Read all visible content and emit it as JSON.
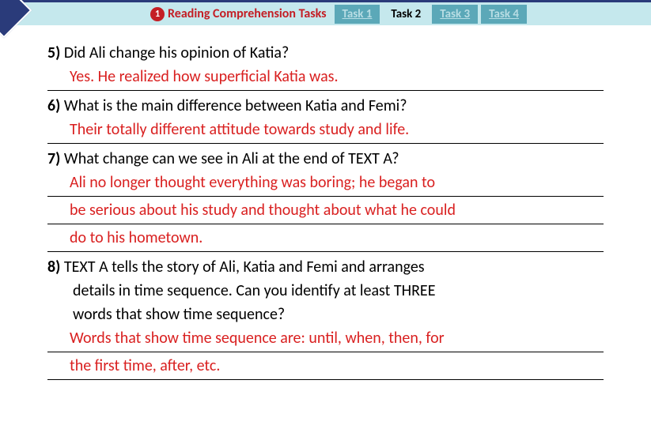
{
  "header": {
    "badge_num": "1",
    "title": "Reading Comprehension Tasks",
    "tabs": [
      {
        "label": "Task 1",
        "active": false
      },
      {
        "label": "Task 2",
        "active": true
      },
      {
        "label": "Task 3",
        "active": false
      },
      {
        "label": "Task 4",
        "active": false
      }
    ]
  },
  "questions": [
    {
      "num": "5)",
      "q": "Did Ali change his opinion of Katia?",
      "a_lines": [
        "Yes. He realized how superficial Katia was."
      ]
    },
    {
      "num": "6)",
      "q": "What is the main difference between Katia and Femi?",
      "a_lines": [
        "Their totally different attitude towards study and life."
      ]
    },
    {
      "num": "7)",
      "q": "What change can we see in Ali at the end of TEXT A?",
      "a_lines": [
        "Ali no longer thought everything was boring; he began to",
        "be serious about his study and thought about what he could",
        "do to his hometown."
      ]
    },
    {
      "num": "8)",
      "q": "TEXT A tells the story of Ali, Katia and Femi and arranges",
      "q_cont": [
        "details in time sequence. Can you identify at least THREE",
        "words that show time sequence?"
      ],
      "a_lines": [
        "Words that show time sequence are: until, when, then, for",
        "the first time, after, etc."
      ]
    }
  ],
  "colors": {
    "header_bg": "#c5e8ed",
    "header_border": "#2a3b7a",
    "accent_red": "#c41e25",
    "answer_red": "#d92020",
    "tab_bg": "#5ba8b8",
    "tab_text": "#b8dde4"
  }
}
